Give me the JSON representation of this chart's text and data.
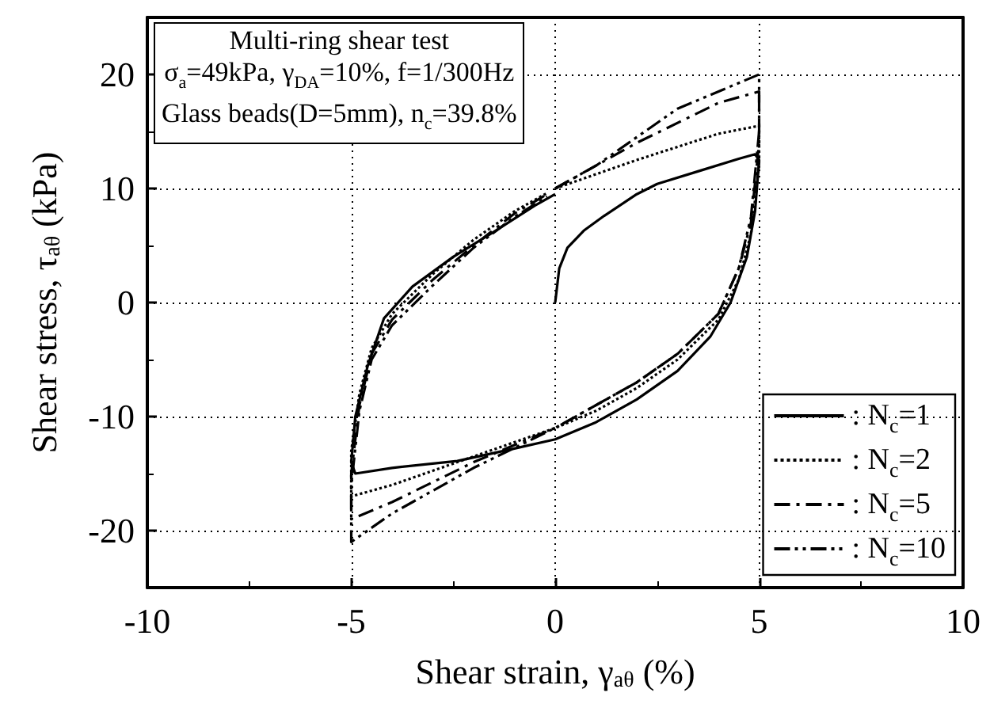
{
  "chart_data": {
    "type": "line",
    "xlabel": "Shear strain, γ$_{aθ}$ (%)",
    "ylabel": "Shear stress, τ$_{aθ}$ (kPa)",
    "annotations": [
      "Multi-ring shear test",
      "σ$_{a}$=49kPa, γ$_{DA}$=10%, f=1/300Hz",
      "Glass beads(D=5mm), n$_{c}$=39.8%"
    ],
    "xlim": [
      -10,
      10
    ],
    "xticks": [
      -10,
      -5,
      0,
      5,
      10
    ],
    "ylim": [
      -25,
      25
    ],
    "yticks": [
      -20,
      -10,
      0,
      10,
      20
    ],
    "grid": true,
    "legend": "bottom right",
    "marker": "none",
    "series": [
      {
        "name": ": N$_{c}$=1",
        "color": "#000000",
        "line_style": "solid",
        "x": [
          0,
          0.1,
          0.3,
          0.7,
          1.2,
          2,
          2.5,
          3.5,
          4.5,
          4.9,
          5,
          4.9,
          4.7,
          4.3,
          3.8,
          3,
          2,
          1,
          0,
          -1,
          -2.4,
          -4,
          -4.9,
          -5,
          -4.9,
          -4.6,
          -4.2,
          -3.5,
          -2.5,
          -1.5,
          -0.5,
          0
        ],
        "values": [
          0,
          3,
          4.8,
          6.3,
          7.6,
          9.5,
          10.4,
          11.5,
          12.6,
          13,
          12.5,
          8,
          4,
          0,
          -3,
          -6,
          -8.5,
          -10.5,
          -12,
          -12.8,
          -13.9,
          -14.5,
          -15,
          -14,
          -10,
          -5.6,
          -1.4,
          1.4,
          4,
          6.2,
          8.5,
          9.5
        ]
      },
      {
        "name": ": N$_{c}$=2",
        "color": "#000000",
        "line_style": "dotted",
        "x": [
          0,
          2,
          4,
          5,
          5,
          4.8,
          4.5,
          4,
          3,
          2,
          1,
          0,
          -2,
          -4,
          -5,
          -5,
          -4.8,
          -4.5,
          -4,
          -3,
          -2,
          -1,
          -0.2
        ],
        "values": [
          10,
          12.5,
          14.8,
          15.5,
          12,
          6,
          2,
          -1.5,
          -5,
          -7.5,
          -9.5,
          -11,
          -13.5,
          -16,
          -17,
          -13,
          -8,
          -4,
          -1,
          2.5,
          5.5,
          8,
          9.6
        ]
      },
      {
        "name": ": N$_{c}$=5",
        "color": "#000000",
        "line_style": "dashdot",
        "x": [
          0,
          2,
          4,
          5,
          5,
          4.8,
          4.5,
          4,
          3,
          2,
          1,
          0,
          -2,
          -4,
          -5,
          -5,
          -4.8,
          -4.5,
          -4,
          -3,
          -2,
          -1,
          -0.2
        ],
        "values": [
          10,
          14,
          17.5,
          18.5,
          14,
          7,
          3,
          -1,
          -4.5,
          -7,
          -9,
          -11,
          -14,
          -17.5,
          -19,
          -15,
          -9,
          -4.5,
          -1.5,
          2,
          5,
          7.8,
          9.5
        ]
      },
      {
        "name": ": N$_{c}$=10",
        "color": "#000000",
        "line_style": "dashdotdot",
        "x": [
          0,
          1,
          3,
          5,
          5,
          4.8,
          4.5,
          4,
          3,
          2,
          1,
          0,
          -2,
          -4,
          -5,
          -5,
          -4.8,
          -4.5,
          -4,
          -3,
          -2,
          -1,
          -0.2
        ],
        "values": [
          10,
          12,
          17,
          20,
          15,
          7.5,
          3,
          -1,
          -4.5,
          -7,
          -9,
          -11,
          -14.5,
          -18.5,
          -21,
          -16,
          -9.5,
          -5,
          -2,
          1.5,
          4.8,
          7.5,
          9.3
        ]
      }
    ]
  }
}
